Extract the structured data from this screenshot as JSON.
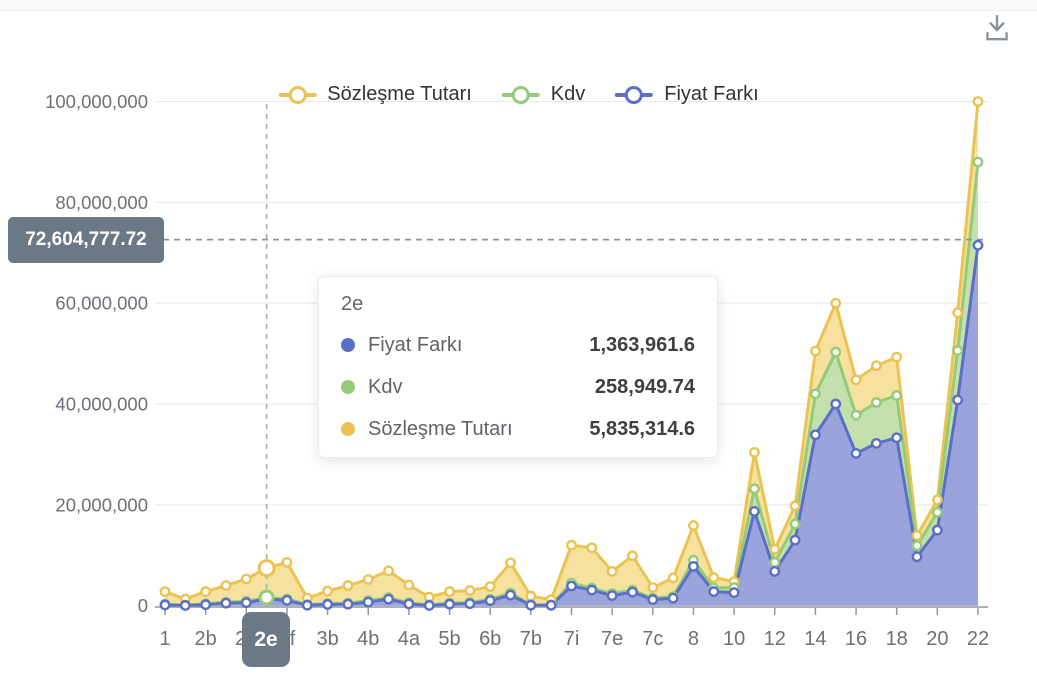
{
  "page": {
    "background": "#ffffff"
  },
  "toolbar": {
    "download_icon": "download-into-tray",
    "icon_color": "#8a9097"
  },
  "legend": [
    {
      "label": "Sözleşme Tutarı",
      "color": "#EAC353"
    },
    {
      "label": "Kdv",
      "color": "#94CB77"
    },
    {
      "label": "Fiyat Farkı",
      "color": "#5A6FC5"
    }
  ],
  "axis_pointer": {
    "y_value": "72,604,777.72",
    "x_value": "2e",
    "badge_color": "#6b7886"
  },
  "tooltip": {
    "title": "2e",
    "rows": [
      {
        "label": "Fiyat Farkı",
        "value": "1,363,961.6",
        "color": "#5A6FC5"
      },
      {
        "label": "Kdv",
        "value": "258,949.74",
        "color": "#94CB77"
      },
      {
        "label": "Sözleşme Tutarı",
        "value": "5,835,314.6",
        "color": "#EAC353"
      }
    ]
  },
  "chart_data": {
    "type": "area",
    "stacked": true,
    "title": "",
    "xlabel": "",
    "ylabel": "",
    "ylim": [
      0,
      100000000
    ],
    "y_ticks": [
      0,
      20000000,
      40000000,
      60000000,
      80000000,
      100000000
    ],
    "grid": true,
    "legend_position": "top",
    "label_interval": 2,
    "hover_index": 5,
    "categories": [
      "1",
      "",
      "2b",
      "",
      "2d",
      "2e",
      "2f",
      "",
      "3b",
      "",
      "4b",
      "",
      "4a",
      "",
      "5b",
      "",
      "6b",
      "",
      "7b",
      "",
      "7i",
      "",
      "7e",
      "",
      "7c",
      "",
      "8",
      "",
      "10",
      "",
      "12",
      "",
      "14",
      "",
      "16",
      "",
      "18",
      "",
      "20",
      "",
      "22"
    ],
    "series": [
      {
        "name": "Fiyat Farkı",
        "stroke": "#5A6FC5",
        "fill": "#9AA3DB",
        "values": [
          150000,
          50000,
          200000,
          500000,
          600000,
          1363961.6,
          1050000,
          100000,
          250000,
          300000,
          700000,
          1300000,
          350000,
          50000,
          300000,
          400000,
          1000000,
          2100000,
          100000,
          80000,
          3900000,
          3100000,
          2000000,
          2700000,
          1200000,
          1500000,
          7800000,
          2800000,
          2600000,
          18700000,
          6800000,
          13000000,
          33900000,
          40000000,
          30200000,
          32200000,
          33300000,
          9700000,
          15000000,
          40800000,
          71500000
        ]
      },
      {
        "name": "Kdv",
        "stroke": "#94CB77",
        "fill": "#C4E0AC",
        "values": [
          150000,
          80000,
          150000,
          200000,
          250000,
          258949.74,
          300000,
          100000,
          150000,
          200000,
          300000,
          300000,
          200000,
          100000,
          200000,
          200000,
          300000,
          400000,
          100000,
          70000,
          600000,
          400000,
          400000,
          400000,
          300000,
          300000,
          1200000,
          700000,
          1000000,
          4500000,
          1800000,
          3200000,
          8100000,
          10300000,
          7600000,
          8100000,
          8400000,
          2200000,
          3500000,
          9800000,
          16500000
        ]
      },
      {
        "name": "Sözleşme Tutarı",
        "stroke": "#EAC353",
        "fill": "#F6E29E",
        "values": [
          2500000,
          1200000,
          2450000,
          3300000,
          4450000,
          5835314.6,
          7250000,
          1300000,
          2500000,
          3500000,
          4200000,
          5300000,
          3550000,
          1550000,
          2300000,
          2400000,
          2500000,
          6000000,
          1700000,
          1050000,
          7500000,
          8000000,
          4400000,
          6800000,
          2100000,
          3700000,
          6900000,
          2100000,
          1200000,
          7200000,
          2600000,
          3600000,
          8500000,
          9700000,
          7000000,
          7300000,
          7600000,
          2000000,
          2500000,
          7500000,
          12000000
        ]
      }
    ]
  }
}
